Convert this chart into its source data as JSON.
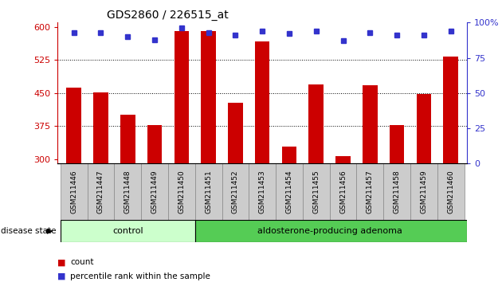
{
  "title": "GDS2860 / 226515_at",
  "samples": [
    "GSM211446",
    "GSM211447",
    "GSM211448",
    "GSM211449",
    "GSM211450",
    "GSM211451",
    "GSM211452",
    "GSM211453",
    "GSM211454",
    "GSM211455",
    "GSM211456",
    "GSM211457",
    "GSM211458",
    "GSM211459",
    "GSM211460"
  ],
  "counts": [
    463,
    452,
    400,
    378,
    590,
    590,
    428,
    567,
    328,
    470,
    307,
    468,
    378,
    448,
    533
  ],
  "percentiles": [
    93,
    93,
    90,
    88,
    96,
    93,
    91,
    94,
    92,
    94,
    87,
    93,
    91,
    91,
    94
  ],
  "control_count": 5,
  "adenoma_count": 10,
  "y_min": 290,
  "y_max": 610,
  "y_ticks": [
    300,
    375,
    450,
    525,
    600
  ],
  "right_y_ticks": [
    0,
    25,
    50,
    75,
    100
  ],
  "bar_color": "#cc0000",
  "dot_color": "#3333cc",
  "control_bg": "#ccffcc",
  "adenoma_bg": "#55cc55",
  "axis_label_color_left": "#cc0000",
  "axis_label_color_right": "#3333cc",
  "legend_count_label": "count",
  "legend_percentile_label": "percentile rank within the sample",
  "disease_state_label": "disease state",
  "control_label": "control",
  "adenoma_label": "aldosterone-producing adenoma",
  "xlabel_bg": "#cccccc",
  "background_color": "#ffffff"
}
